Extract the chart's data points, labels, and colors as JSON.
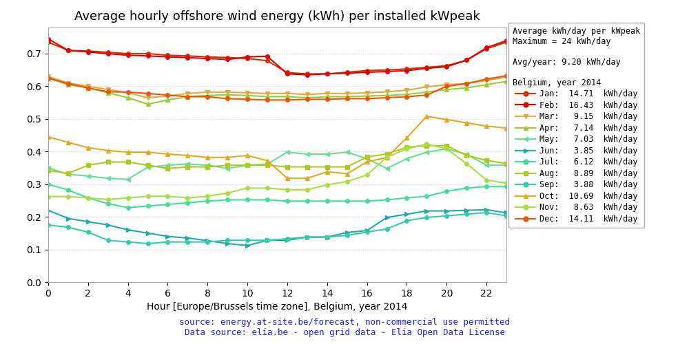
{
  "title": "Average hourly offshore wind energy (kWh) per installed kWpeak",
  "xlabel": "Hour [Europe/Brussels time zone], Belgium, year 2014",
  "xlim": [
    0,
    23
  ],
  "ylim": [
    0.0,
    0.78
  ],
  "yticks": [
    0.0,
    0.1,
    0.2,
    0.3,
    0.4,
    0.5,
    0.6,
    0.7
  ],
  "xticks": [
    0,
    2,
    4,
    6,
    8,
    10,
    12,
    14,
    16,
    18,
    20,
    22
  ],
  "source_text": "source: energy.at-site.be/forecast, non-commercial use permitted\nData source: elia.be - open grid data - Elia Open Data License",
  "months": [
    "Jan",
    "Feb",
    "Mar",
    "Apr",
    "May",
    "Jun",
    "Jul",
    "Aug",
    "Sep",
    "Oct",
    "Nov",
    "Dec"
  ],
  "kwh_day": [
    14.71,
    16.43,
    9.15,
    7.14,
    7.03,
    3.85,
    6.12,
    8.89,
    3.88,
    10.69,
    8.63,
    14.11
  ],
  "colors": [
    "#cc3300",
    "#dd0000",
    "#ddaa44",
    "#99cc33",
    "#66dd99",
    "#22aaaa",
    "#44dd99",
    "#aacc22",
    "#33ccaa",
    "#ddaa22",
    "#aadd44",
    "#ee5500"
  ],
  "markers": [
    "o",
    "o",
    "v",
    "^",
    "<",
    ">",
    "o",
    "s",
    "o",
    "^",
    "o",
    "o"
  ],
  "data": {
    "Jan": [
      0.735,
      0.71,
      0.708,
      0.704,
      0.7,
      0.7,
      0.695,
      0.693,
      0.69,
      0.688,
      0.685,
      0.678,
      0.642,
      0.638,
      0.638,
      0.643,
      0.648,
      0.65,
      0.653,
      0.658,
      0.663,
      0.68,
      0.715,
      0.735
    ],
    "Feb": [
      0.745,
      0.71,
      0.705,
      0.7,
      0.695,
      0.693,
      0.69,
      0.688,
      0.685,
      0.682,
      0.69,
      0.692,
      0.638,
      0.635,
      0.638,
      0.64,
      0.643,
      0.645,
      0.648,
      0.655,
      0.66,
      0.68,
      0.718,
      0.74
    ],
    "Mar": [
      0.63,
      0.61,
      0.6,
      0.59,
      0.58,
      0.565,
      0.57,
      0.578,
      0.582,
      0.582,
      0.58,
      0.578,
      0.578,
      0.575,
      0.578,
      0.578,
      0.58,
      0.583,
      0.588,
      0.598,
      0.605,
      0.608,
      0.618,
      0.628
    ],
    "Apr": [
      0.625,
      0.605,
      0.595,
      0.58,
      0.565,
      0.545,
      0.558,
      0.568,
      0.572,
      0.574,
      0.572,
      0.568,
      0.568,
      0.565,
      0.568,
      0.568,
      0.57,
      0.572,
      0.575,
      0.582,
      0.59,
      0.595,
      0.605,
      0.615
    ],
    "May": [
      0.35,
      0.33,
      0.325,
      0.318,
      0.315,
      0.352,
      0.358,
      0.362,
      0.358,
      0.348,
      0.358,
      0.362,
      0.398,
      0.392,
      0.392,
      0.398,
      0.378,
      0.348,
      0.378,
      0.398,
      0.408,
      0.392,
      0.358,
      0.358
    ],
    "Jun": [
      0.22,
      0.195,
      0.185,
      0.175,
      0.16,
      0.15,
      0.14,
      0.135,
      0.127,
      0.118,
      0.112,
      0.128,
      0.128,
      0.138,
      0.138,
      0.152,
      0.158,
      0.198,
      0.208,
      0.218,
      0.218,
      0.22,
      0.222,
      0.212
    ],
    "Jul": [
      0.3,
      0.282,
      0.258,
      0.24,
      0.228,
      0.233,
      0.238,
      0.243,
      0.248,
      0.252,
      0.252,
      0.252,
      0.248,
      0.248,
      0.248,
      0.248,
      0.248,
      0.252,
      0.258,
      0.263,
      0.278,
      0.288,
      0.293,
      0.292
    ],
    "Aug": [
      0.342,
      0.333,
      0.358,
      0.368,
      0.368,
      0.358,
      0.348,
      0.353,
      0.353,
      0.358,
      0.358,
      0.358,
      0.353,
      0.353,
      0.353,
      0.353,
      0.383,
      0.393,
      0.413,
      0.418,
      0.418,
      0.388,
      0.373,
      0.363
    ],
    "Sep": [
      0.175,
      0.168,
      0.153,
      0.128,
      0.123,
      0.118,
      0.123,
      0.123,
      0.123,
      0.128,
      0.128,
      0.128,
      0.133,
      0.138,
      0.138,
      0.143,
      0.153,
      0.163,
      0.188,
      0.198,
      0.203,
      0.208,
      0.213,
      0.203
    ],
    "Oct": [
      0.445,
      0.428,
      0.412,
      0.403,
      0.398,
      0.398,
      0.392,
      0.388,
      0.382,
      0.382,
      0.388,
      0.372,
      0.318,
      0.318,
      0.338,
      0.332,
      0.368,
      0.382,
      0.442,
      0.508,
      0.498,
      0.488,
      0.478,
      0.472
    ],
    "Nov": [
      0.262,
      0.262,
      0.258,
      0.253,
      0.258,
      0.263,
      0.263,
      0.258,
      0.263,
      0.273,
      0.288,
      0.288,
      0.283,
      0.283,
      0.298,
      0.308,
      0.328,
      0.383,
      0.408,
      0.423,
      0.408,
      0.363,
      0.313,
      0.303
    ],
    "Dec": [
      0.625,
      0.608,
      0.595,
      0.583,
      0.582,
      0.578,
      0.573,
      0.568,
      0.568,
      0.562,
      0.56,
      0.558,
      0.558,
      0.56,
      0.56,
      0.562,
      0.562,
      0.565,
      0.568,
      0.573,
      0.6,
      0.608,
      0.622,
      0.632
    ]
  },
  "background_color": "#ffffff",
  "grid_color": "#cccccc",
  "title_fontsize": 13,
  "tick_fontsize": 10,
  "source_color": "#2222cc",
  "fig_width": 10.0,
  "fig_height": 5.0,
  "legend_text": [
    "Jan:  14.71  kWh/day",
    "Feb:  16.43  kWh/day",
    "Mar:   9.15  kWh/day",
    "Apr:   7.14  kWh/day",
    "May:   7.03  kWh/day",
    "Jun:   3.85  kWh/day",
    "Jul:   6.12  kWh/day",
    "Aug:   8.89  kWh/day",
    "Sep:   3.88  kWh/day",
    "Oct:  10.69  kWh/day",
    "Nov:   8.63  kWh/day",
    "Dec:  14.11  kWh/day"
  ]
}
